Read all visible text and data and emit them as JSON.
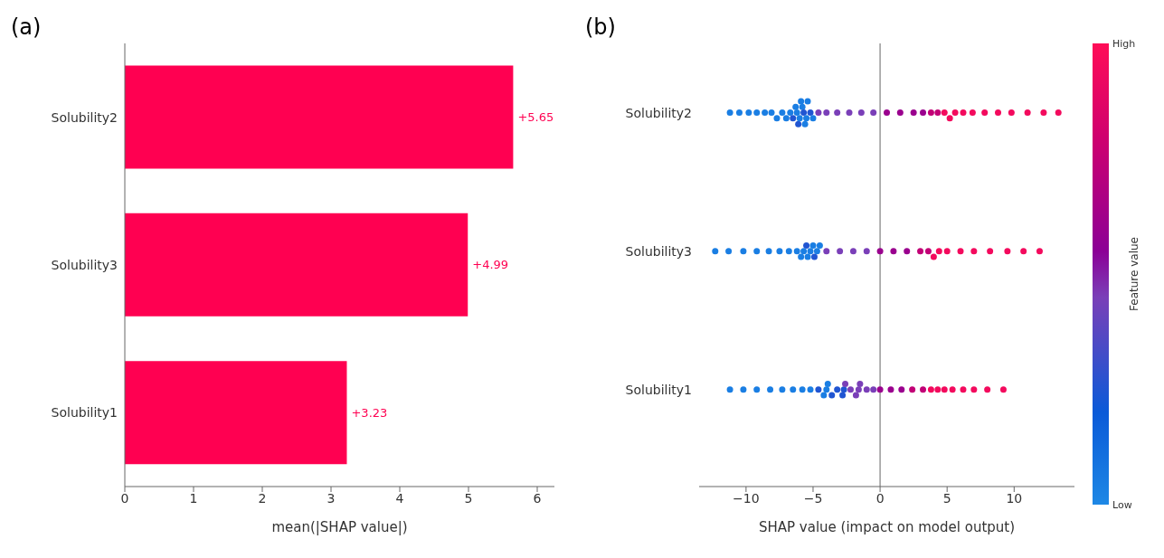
{
  "chart_data": [
    {
      "type": "bar",
      "orientation": "horizontal",
      "annotations": [
        "(a)"
      ],
      "xlabel": "mean(|SHAP value|)",
      "categories": [
        "Solubility2",
        "Solubility3",
        "Solubility1"
      ],
      "values": [
        5.65,
        4.99,
        3.23
      ],
      "color": "#ff0051",
      "value_labels": [
        "+5.65",
        "+4.99",
        "+3.23"
      ],
      "xlim": [
        0,
        6.25
      ],
      "xticks": [
        0,
        1,
        2,
        3,
        4,
        5,
        6
      ]
    },
    {
      "type": "scatter",
      "orientation": "horizontal",
      "annotations": [
        "(b)"
      ],
      "xlabel": "SHAP value (impact on model output)",
      "clabel": "Feature value",
      "clim": [
        0,
        1
      ],
      "cticks": [
        {
          "value": 0,
          "label": "Low"
        },
        {
          "value": 1,
          "label": "High"
        }
      ],
      "categories": [
        "Solubility2",
        "Solubility3",
        "Solubility1"
      ],
      "xlim": [
        -13.5,
        14.5
      ],
      "xticks": [
        {
          "value": -10,
          "label": "−10"
        },
        {
          "value": -5,
          "label": "−5"
        },
        0,
        5,
        10
      ],
      "ref_lines": [
        {
          "axis": "x",
          "value": 0,
          "color": "#999999"
        }
      ],
      "series": [
        {
          "x": [
            "Solubility2",
            "Solubility2",
            "Solubility2",
            "Solubility2",
            "Solubility2",
            "Solubility2",
            "Solubility2",
            "Solubility2",
            "Solubility2",
            "Solubility2",
            "Solubility2",
            "Solubility2",
            "Solubility2",
            "Solubility2",
            "Solubility2",
            "Solubility2",
            "Solubility2",
            "Solubility2",
            "Solubility2",
            "Solubility2",
            "Solubility2",
            "Solubility2",
            "Solubility2",
            "Solubility2",
            "Solubility2",
            "Solubility2",
            "Solubility2",
            "Solubility2",
            "Solubility2",
            "Solubility2",
            "Solubility2",
            "Solubility2",
            "Solubility2",
            "Solubility2",
            "Solubility2",
            "Solubility2",
            "Solubility2",
            "Solubility2",
            "Solubility2",
            "Solubility2",
            "Solubility2",
            "Solubility2",
            "Solubility2",
            "Solubility2",
            "Solubility2",
            "Solubility2"
          ],
          "values": [
            -11.2,
            -10.5,
            -9.8,
            -9.2,
            -8.6,
            -8.1,
            -7.7,
            -7.3,
            -7.0,
            -6.7,
            -6.5,
            -6.3,
            -6.2,
            -6.1,
            -6.0,
            -5.9,
            -5.8,
            -5.7,
            -5.6,
            -5.5,
            -5.4,
            -5.2,
            -5.0,
            -4.6,
            -4.0,
            -3.2,
            -2.3,
            -1.4,
            -0.5,
            0.5,
            1.5,
            2.5,
            3.2,
            3.8,
            4.3,
            4.8,
            5.2,
            5.6,
            6.2,
            6.9,
            7.8,
            8.8,
            9.8,
            11.0,
            12.2,
            13.3
          ],
          "colors": [
            "#1a7ee3",
            "#1a7ee3",
            "#1a7ee3",
            "#1a7ee3",
            "#1a7ee3",
            "#1a7ee3",
            "#1a7ee3",
            "#1a7ee3",
            "#1a7ee3",
            "#1a7ee3",
            "#2055d2",
            "#1a7ee3",
            "#1a7ee3",
            "#2055d2",
            "#1a7ee3",
            "#1a7ee3",
            "#1a7ee3",
            "#2055d2",
            "#1a7ee3",
            "#1a7ee3",
            "#1a7ee3",
            "#2055d2",
            "#1a7ee3",
            "#7a3fb8",
            "#7a3fb8",
            "#7a3fb8",
            "#7a3fb8",
            "#7a3fb8",
            "#7a3fb8",
            "#9a008e",
            "#9a008e",
            "#9a008e",
            "#9a008e",
            "#c20076",
            "#c20076",
            "#f30a5d",
            "#f30a5d",
            "#f30a5d",
            "#f30a5d",
            "#f30a5d",
            "#f30a5d",
            "#f30a5d",
            "#f30a5d",
            "#f30a5d",
            "#f30a5d",
            "#f30a5d"
          ]
        },
        {
          "x": [
            "Solubility3",
            "Solubility3",
            "Solubility3",
            "Solubility3",
            "Solubility3",
            "Solubility3",
            "Solubility3",
            "Solubility3",
            "Solubility3",
            "Solubility3",
            "Solubility3",
            "Solubility3",
            "Solubility3",
            "Solubility3",
            "Solubility3",
            "Solubility3",
            "Solubility3",
            "Solubility3",
            "Solubility3",
            "Solubility3",
            "Solubility3",
            "Solubility3",
            "Solubility3",
            "Solubility3",
            "Solubility3",
            "Solubility3",
            "Solubility3",
            "Solubility3",
            "Solubility3",
            "Solubility3",
            "Solubility3",
            "Solubility3",
            "Solubility3",
            "Solubility3",
            "Solubility3"
          ],
          "values": [
            -12.3,
            -11.3,
            -10.2,
            -9.2,
            -8.3,
            -7.5,
            -6.8,
            -6.2,
            -5.9,
            -5.7,
            -5.5,
            -5.4,
            -5.2,
            -5.0,
            -4.9,
            -4.7,
            -4.5,
            -4.0,
            -3.0,
            -2.0,
            -1.0,
            0.0,
            1.0,
            2.0,
            3.0,
            3.6,
            4.0,
            4.4,
            5.0,
            6.0,
            7.0,
            8.2,
            9.5,
            10.7,
            11.9
          ],
          "colors": [
            "#1a7ee3",
            "#1a7ee3",
            "#1a7ee3",
            "#1a7ee3",
            "#1a7ee3",
            "#1a7ee3",
            "#1a7ee3",
            "#1a7ee3",
            "#1a7ee3",
            "#1a7ee3",
            "#2055d2",
            "#1a7ee3",
            "#1a7ee3",
            "#1a7ee3",
            "#2055d2",
            "#1a7ee3",
            "#1a7ee3",
            "#7a3fb8",
            "#7a3fb8",
            "#7a3fb8",
            "#7a3fb8",
            "#9a008e",
            "#9a008e",
            "#9a008e",
            "#c20076",
            "#c20076",
            "#f30a5d",
            "#f30a5d",
            "#f30a5d",
            "#f30a5d",
            "#f30a5d",
            "#f30a5d",
            "#f30a5d",
            "#f30a5d",
            "#f30a5d"
          ]
        },
        {
          "x": [
            "Solubility1",
            "Solubility1",
            "Solubility1",
            "Solubility1",
            "Solubility1",
            "Solubility1",
            "Solubility1",
            "Solubility1",
            "Solubility1",
            "Solubility1",
            "Solubility1",
            "Solubility1",
            "Solubility1",
            "Solubility1",
            "Solubility1",
            "Solubility1",
            "Solubility1",
            "Solubility1",
            "Solubility1",
            "Solubility1",
            "Solubility1",
            "Solubility1",
            "Solubility1",
            "Solubility1",
            "Solubility1",
            "Solubility1",
            "Solubility1",
            "Solubility1",
            "Solubility1",
            "Solubility1",
            "Solubility1",
            "Solubility1",
            "Solubility1",
            "Solubility1",
            "Solubility1",
            "Solubility1"
          ],
          "values": [
            -11.2,
            -10.2,
            -9.2,
            -8.2,
            -7.3,
            -6.5,
            -5.8,
            -5.2,
            -4.6,
            -4.2,
            -4.0,
            -3.9,
            -3.6,
            -3.2,
            -2.8,
            -2.7,
            -2.6,
            -2.2,
            -1.8,
            -1.6,
            -1.5,
            -1.0,
            -0.5,
            0.0,
            0.8,
            1.6,
            2.4,
            3.2,
            3.8,
            4.3,
            4.8,
            5.4,
            6.2,
            7.0,
            8.0,
            9.2
          ],
          "colors": [
            "#1a7ee3",
            "#1a7ee3",
            "#1a7ee3",
            "#1a7ee3",
            "#1a7ee3",
            "#1a7ee3",
            "#1a7ee3",
            "#1a7ee3",
            "#2055d2",
            "#1a7ee3",
            "#1a7ee3",
            "#1a7ee3",
            "#2055d2",
            "#2055d2",
            "#2055d2",
            "#2055d2",
            "#7a3fb8",
            "#7a3fb8",
            "#7a3fb8",
            "#7a3fb8",
            "#7a3fb8",
            "#7a3fb8",
            "#7a3fb8",
            "#9a008e",
            "#9a008e",
            "#9a008e",
            "#c20076",
            "#c20076",
            "#f30a5d",
            "#f30a5d",
            "#f30a5d",
            "#f30a5d",
            "#f30a5d",
            "#f30a5d",
            "#f30a5d",
            "#f30a5d"
          ]
        }
      ]
    }
  ]
}
